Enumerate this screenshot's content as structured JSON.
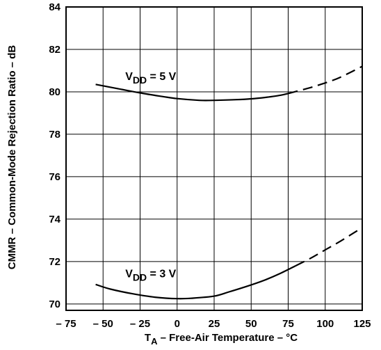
{
  "chart_data": {
    "type": "line",
    "xlabel": "T_A – Free-Air Temperature – °C",
    "xlabel_parts": {
      "main": "T",
      "sub": "A",
      "rest": " – Free-Air Temperature – °C"
    },
    "ylabel": "CMMR – Common-Mode Rejection Ratio – dB",
    "xlim": [
      -75,
      125
    ],
    "ylim": [
      69.7,
      84
    ],
    "xticks": [
      -75,
      -50,
      -25,
      0,
      25,
      50,
      75,
      100,
      125
    ],
    "xtick_labels": [
      "– 75",
      "– 50",
      "– 25",
      "0",
      "25",
      "50",
      "75",
      "100",
      "125"
    ],
    "yticks": [
      70,
      72,
      74,
      76,
      78,
      80,
      82,
      84
    ],
    "ytick_labels": [
      "70",
      "72",
      "74",
      "76",
      "78",
      "80",
      "82",
      "84"
    ],
    "grid": true,
    "series": [
      {
        "name": "VDD = 5 V",
        "label_parts": {
          "main": "V",
          "sub": "DD",
          "rest": " = 5 V"
        },
        "label_at": [
          -35,
          80.55
        ],
        "solid": [
          [
            -55,
            80.35
          ],
          [
            -40,
            80.15
          ],
          [
            -25,
            79.95
          ],
          [
            -10,
            79.78
          ],
          [
            0,
            79.68
          ],
          [
            15,
            79.6
          ],
          [
            25,
            79.6
          ],
          [
            40,
            79.63
          ],
          [
            50,
            79.67
          ],
          [
            60,
            79.74
          ],
          [
            70,
            79.84
          ],
          [
            75,
            79.92
          ]
        ],
        "dashed": [
          [
            75,
            79.92
          ],
          [
            90,
            80.2
          ],
          [
            100,
            80.42
          ],
          [
            110,
            80.68
          ],
          [
            125,
            81.2
          ]
        ]
      },
      {
        "name": "VDD = 3 V",
        "label_parts": {
          "main": "V",
          "sub": "DD",
          "rest": " = 3 V"
        },
        "label_at": [
          -35,
          71.25
        ],
        "solid": [
          [
            -55,
            70.92
          ],
          [
            -45,
            70.7
          ],
          [
            -30,
            70.48
          ],
          [
            -15,
            70.32
          ],
          [
            0,
            70.25
          ],
          [
            10,
            70.27
          ],
          [
            25,
            70.37
          ],
          [
            35,
            70.57
          ],
          [
            50,
            70.9
          ],
          [
            60,
            71.15
          ],
          [
            70,
            71.45
          ],
          [
            80,
            71.8
          ]
        ],
        "dashed": [
          [
            80,
            71.8
          ],
          [
            90,
            72.15
          ],
          [
            100,
            72.55
          ],
          [
            110,
            72.95
          ],
          [
            125,
            73.6
          ]
        ]
      }
    ]
  }
}
